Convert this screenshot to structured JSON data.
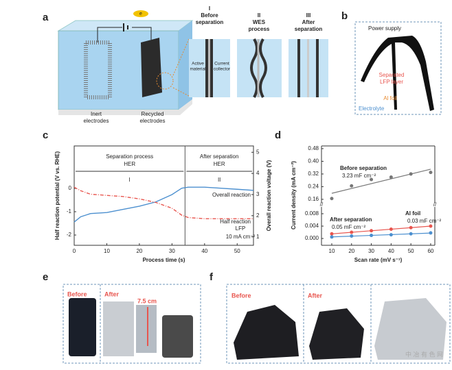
{
  "figure": {
    "panel_labels": [
      "a",
      "b",
      "c",
      "d",
      "e",
      "f"
    ],
    "a": {
      "battery": "e",
      "inert": [
        "Inert",
        "electrodes"
      ],
      "recycled": [
        "Recycled",
        "electrodes"
      ],
      "stage1": [
        "I",
        "Before",
        "separation"
      ],
      "stage2": [
        "II",
        "WES",
        "process"
      ],
      "stage3": [
        "III",
        "After",
        "separation"
      ],
      "active": [
        "Active",
        "material"
      ],
      "collector": [
        "Current",
        "collector"
      ]
    },
    "b": {
      "power": "Power supply",
      "layer": [
        "Separated",
        "LFP layer"
      ],
      "foil": "Al foil",
      "electrolyte": "Electrolyte"
    },
    "e": {
      "before": "Before",
      "after": "After",
      "size": "7.5 cm"
    },
    "f": {
      "before": "Before",
      "after": "After",
      "watermark": "中 冶 有 色 网"
    }
  },
  "chart_data": [
    {
      "type": "line",
      "xlabel": "Process time (s)",
      "ylabel": "Half reaction potential (V vs. RHE)",
      "y2label": "Overall reaction voltage (V)",
      "xlim": [
        0,
        55
      ],
      "xticks": [
        0,
        10,
        20,
        30,
        40,
        50
      ],
      "ylim": [
        -2.44,
        1.82
      ],
      "yticks": [
        -2,
        -1,
        0
      ],
      "y2lim": [
        0.6,
        5.3
      ],
      "y2ticks": [
        1,
        2,
        3,
        4,
        5
      ],
      "divider_x": 34,
      "annotations": {
        "phase1": [
          "Separation process",
          "HER"
        ],
        "phase2": [
          "After separation",
          "HER"
        ],
        "roman": [
          "I",
          "II"
        ],
        "overall": "Overall reaction",
        "half": [
          "Half reaction",
          "LFP"
        ],
        "current": "10 mA cm⁻²"
      },
      "series": [
        {
          "name": "Overall reaction",
          "color": "#4b8fcf",
          "axis": "y2",
          "style": "solid",
          "x": [
            0,
            2,
            5,
            10,
            15,
            20,
            25,
            30,
            33,
            35,
            40,
            45,
            50,
            55
          ],
          "values": [
            1.7,
            1.95,
            2.1,
            2.15,
            2.3,
            2.45,
            2.65,
            3.0,
            3.3,
            3.35,
            3.35,
            3.3,
            3.25,
            3.2
          ]
        },
        {
          "name": "Half reaction",
          "color": "#e8554e",
          "axis": "y",
          "style": "dashdot",
          "x": [
            0,
            2,
            5,
            10,
            15,
            20,
            25,
            30,
            33,
            35,
            40,
            45,
            50,
            55
          ],
          "values": [
            0.05,
            -0.1,
            -0.25,
            -0.3,
            -0.35,
            -0.45,
            -0.6,
            -0.85,
            -1.15,
            -1.25,
            -1.3,
            -1.3,
            -1.3,
            -1.3
          ]
        }
      ]
    },
    {
      "type": "scatter",
      "xlabel": "Scan rate (mV s⁻¹)",
      "ylabel": "Current density (mA cm⁻²)",
      "xlim": [
        4.8,
        62.1
      ],
      "xticks": [
        10,
        20,
        30,
        40,
        50,
        60
      ],
      "upper": {
        "ylim": [
          0.138,
          0.497
        ],
        "yticks": [
          0.16,
          0.24,
          0.32,
          {
            "value": 0.4,
            "label": "0.40"
          },
          0.48
        ]
      },
      "lower": {
        "ylim": [
          -0.0022,
          0.0102
        ],
        "yticks": [
          {
            "value": 0,
            "label": "0.000"
          },
          {
            "value": 0.004,
            "label": "0.004"
          },
          {
            "value": 0.008,
            "label": "0.008"
          }
        ]
      },
      "series": [
        {
          "name": "Before separation",
          "annotation": "3.23 mF cm⁻²",
          "color": "#777777",
          "x": [
            10,
            20,
            30,
            40,
            50,
            60
          ],
          "values": [
            0.165,
            0.245,
            0.285,
            0.3,
            0.32,
            0.33
          ]
        },
        {
          "name": "After separation",
          "annotation": "0.05 mF cm⁻²",
          "color": "#e8554e",
          "x": [
            10,
            20,
            30,
            40,
            50,
            60
          ],
          "values": [
            0.0015,
            0.002,
            0.0025,
            0.003,
            0.0035,
            0.004
          ]
        },
        {
          "name": "Al foil",
          "annotation": "0.03 mF cm⁻²",
          "color": "#4b8fcf",
          "x": [
            10,
            20,
            30,
            40,
            50,
            60
          ],
          "values": [
            0.0005,
            0.0008,
            0.001,
            0.0012,
            0.0015,
            0.0018
          ]
        }
      ]
    }
  ]
}
